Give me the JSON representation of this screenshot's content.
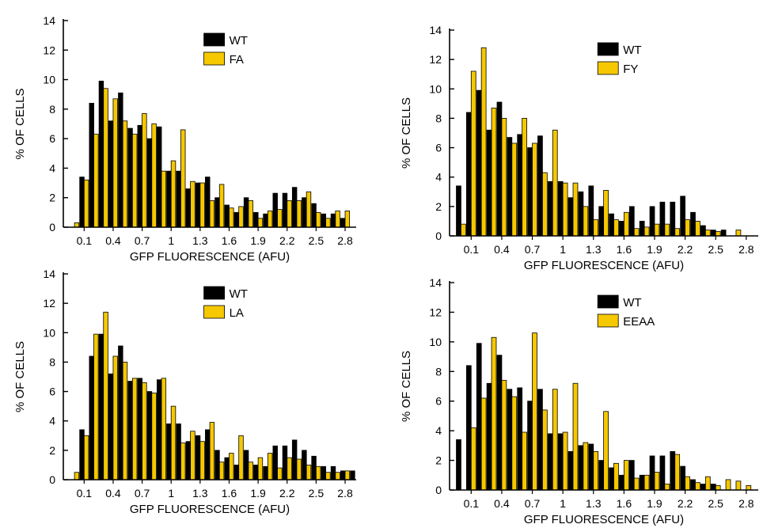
{
  "colors": {
    "wt": "#000000",
    "mutant": "#f5c800",
    "bar_outline": "#000000"
  },
  "chart_data": [
    {
      "type": "bar",
      "xlabel": "GFP FLUORESCENCE (AFU)",
      "ylabel": "% OF CELLS",
      "ylim": [
        0,
        14
      ],
      "yticks": [
        0,
        2,
        4,
        6,
        8,
        10,
        12,
        14
      ],
      "x": [
        0.0,
        0.1,
        0.2,
        0.3,
        0.4,
        0.5,
        0.6,
        0.7,
        0.8,
        0.9,
        1.0,
        1.1,
        1.2,
        1.3,
        1.4,
        1.5,
        1.6,
        1.7,
        1.8,
        1.9,
        2.0,
        2.1,
        2.2,
        2.3,
        2.4,
        2.5,
        2.6,
        2.7,
        2.8,
        2.9
      ],
      "xticks": [
        "0.1",
        "0.4",
        "0.7",
        "1",
        "1.3",
        "1.6",
        "1.9",
        "2.2",
        "2.5",
        "2.8"
      ],
      "legend_position": "top-center",
      "series": [
        {
          "name": "WT",
          "values": [
            0.0,
            3.4,
            8.4,
            9.9,
            7.2,
            9.1,
            6.7,
            6.9,
            6.0,
            6.8,
            3.8,
            3.8,
            2.6,
            3.0,
            3.4,
            2.0,
            1.5,
            1.0,
            2.0,
            1.0,
            0.9,
            2.3,
            2.3,
            2.7,
            2.0,
            1.6,
            0.9,
            0.9,
            0.6,
            0.0
          ]
        },
        {
          "name": "FA",
          "values": [
            0.3,
            3.2,
            6.3,
            9.4,
            8.7,
            7.2,
            6.3,
            7.7,
            7.0,
            3.8,
            4.5,
            6.6,
            3.1,
            3.0,
            1.8,
            2.9,
            1.3,
            1.4,
            1.8,
            0.6,
            1.1,
            1.2,
            1.8,
            1.8,
            2.4,
            1.0,
            0.6,
            1.1,
            1.1,
            0.0
          ]
        }
      ]
    },
    {
      "type": "bar",
      "xlabel": "GFP FLUORESCENCE (AFU)",
      "ylabel": "% OF CELLS",
      "ylim": [
        0,
        14
      ],
      "yticks": [
        0,
        2,
        4,
        6,
        8,
        10,
        12,
        14
      ],
      "x": [
        0.0,
        0.1,
        0.2,
        0.3,
        0.4,
        0.5,
        0.6,
        0.7,
        0.8,
        0.9,
        1.0,
        1.1,
        1.2,
        1.3,
        1.4,
        1.5,
        1.6,
        1.7,
        1.8,
        1.9,
        2.0,
        2.1,
        2.2,
        2.3,
        2.4,
        2.5,
        2.6,
        2.7,
        2.8,
        2.9
      ],
      "xticks": [
        "0.1",
        "0.4",
        "0.7",
        "1",
        "1.3",
        "1.6",
        "1.9",
        "2.2",
        "2.5",
        "2.8"
      ],
      "legend_position": "top-center",
      "series": [
        {
          "name": "WT",
          "values": [
            3.4,
            8.4,
            9.9,
            7.2,
            9.1,
            6.7,
            6.9,
            6.0,
            6.8,
            3.7,
            3.7,
            2.6,
            3.0,
            3.4,
            2.0,
            1.5,
            1.0,
            2.0,
            1.0,
            2.0,
            2.3,
            2.3,
            2.7,
            1.6,
            0.7,
            0.4,
            0.4,
            0.0,
            0.0,
            0.0
          ]
        },
        {
          "name": "FY",
          "values": [
            0.8,
            11.2,
            12.8,
            8.7,
            8.0,
            6.3,
            8.0,
            6.3,
            4.3,
            7.2,
            3.6,
            3.6,
            2.0,
            1.1,
            3.1,
            1.1,
            1.6,
            0.5,
            0.6,
            0.8,
            0.8,
            0.5,
            1.1,
            1.0,
            0.4,
            0.3,
            0.0,
            0.4,
            0.0,
            0.0
          ]
        }
      ]
    },
    {
      "type": "bar",
      "xlabel": "GFP FLUORESCENCE (AFU)",
      "ylabel": "% OF CELLS",
      "ylim": [
        0,
        14
      ],
      "yticks": [
        0,
        2,
        4,
        6,
        8,
        10,
        12,
        14
      ],
      "x": [
        0.0,
        0.1,
        0.2,
        0.3,
        0.4,
        0.5,
        0.6,
        0.7,
        0.8,
        0.9,
        1.0,
        1.1,
        1.2,
        1.3,
        1.4,
        1.5,
        1.6,
        1.7,
        1.8,
        1.9,
        2.0,
        2.1,
        2.2,
        2.3,
        2.4,
        2.5,
        2.6,
        2.7,
        2.8,
        2.9
      ],
      "xticks": [
        "0.1",
        "0.4",
        "0.7",
        "1",
        "1.3",
        "1.6",
        "1.9",
        "2.2",
        "2.5",
        "2.8"
      ],
      "legend_position": "top-center",
      "series": [
        {
          "name": "WT",
          "values": [
            0.0,
            3.4,
            8.4,
            9.9,
            7.2,
            9.1,
            6.7,
            6.9,
            6.0,
            6.8,
            3.8,
            3.8,
            2.6,
            3.0,
            3.4,
            2.0,
            1.5,
            1.0,
            2.0,
            1.0,
            0.9,
            2.3,
            2.3,
            2.7,
            2.0,
            1.6,
            0.9,
            0.9,
            0.6,
            0.6
          ]
        },
        {
          "name": "LA",
          "values": [
            0.5,
            3.0,
            9.9,
            11.4,
            8.4,
            8.0,
            6.9,
            6.6,
            5.9,
            6.9,
            5.0,
            2.5,
            3.3,
            2.6,
            3.9,
            1.2,
            1.8,
            3.0,
            1.2,
            1.5,
            1.8,
            0.8,
            1.5,
            1.4,
            1.0,
            0.9,
            0.5,
            0.5,
            0.6,
            0.0
          ]
        }
      ]
    },
    {
      "type": "bar",
      "xlabel": "GFP FLUORESCENCE (AFU)",
      "ylabel": "% OF CELLS",
      "ylim": [
        0,
        14
      ],
      "yticks": [
        0,
        2,
        4,
        6,
        8,
        10,
        12,
        14
      ],
      "x": [
        0.0,
        0.1,
        0.2,
        0.3,
        0.4,
        0.5,
        0.6,
        0.7,
        0.8,
        0.9,
        1.0,
        1.1,
        1.2,
        1.3,
        1.4,
        1.5,
        1.6,
        1.7,
        1.8,
        1.9,
        2.0,
        2.1,
        2.2,
        2.3,
        2.4,
        2.5,
        2.6,
        2.7,
        2.8,
        2.9
      ],
      "xticks": [
        "0.1",
        "0.4",
        "0.7",
        "1",
        "1.3",
        "1.6",
        "1.9",
        "2.2",
        "2.5",
        "2.8"
      ],
      "legend_position": "top-center",
      "series": [
        {
          "name": "WT",
          "values": [
            3.4,
            8.4,
            9.9,
            7.2,
            9.1,
            6.8,
            6.9,
            6.0,
            6.8,
            3.8,
            3.8,
            2.6,
            3.0,
            3.1,
            2.0,
            1.5,
            1.0,
            2.0,
            1.0,
            2.3,
            2.3,
            2.6,
            1.6,
            0.7,
            0.4,
            0.4,
            0.0,
            0.0,
            0.0,
            0.0
          ]
        },
        {
          "name": "EEAA",
          "values": [
            0.0,
            4.2,
            6.2,
            10.3,
            7.4,
            6.3,
            3.9,
            10.6,
            5.4,
            6.8,
            3.9,
            7.2,
            3.2,
            2.6,
            5.3,
            1.8,
            2.0,
            0.8,
            1.0,
            1.2,
            0.4,
            2.4,
            0.9,
            0.5,
            0.9,
            0.3,
            0.7,
            0.6,
            0.3,
            0.0
          ]
        }
      ]
    }
  ]
}
